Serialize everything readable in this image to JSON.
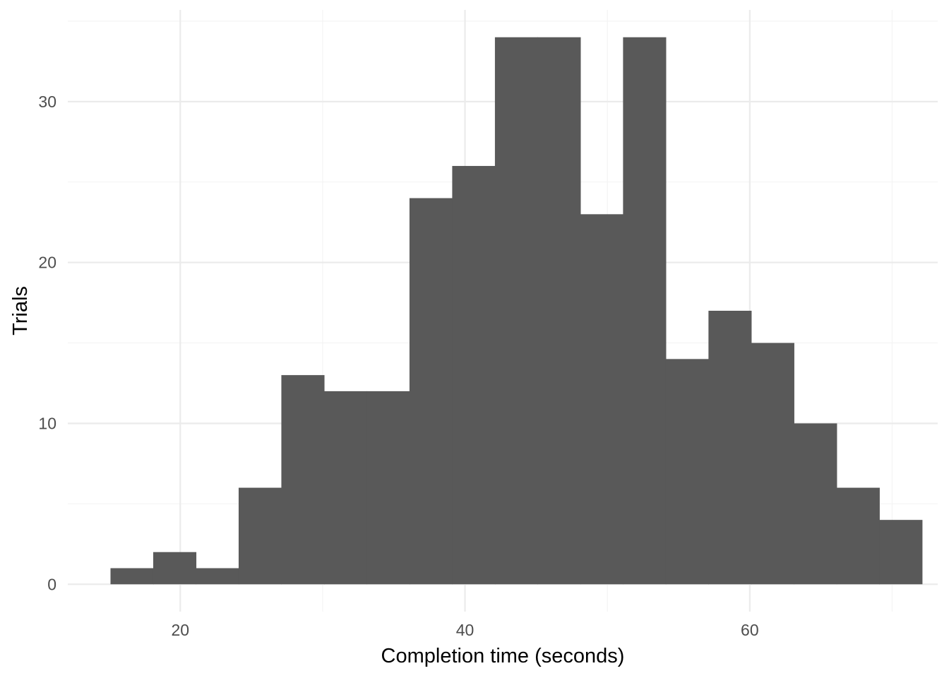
{
  "chart_data": {
    "type": "bar",
    "title": "",
    "xlabel": "Completion time (seconds)",
    "ylabel": "Trials",
    "xlim": [
      12.1,
      73.2
    ],
    "ylim": [
      -1.7,
      35.7
    ],
    "x_major_ticks": [
      20,
      40,
      60
    ],
    "x_minor_ticks": [
      30,
      50,
      70
    ],
    "y_major_ticks": [
      0,
      10,
      20,
      30
    ],
    "y_minor_ticks": [
      5,
      15,
      25,
      35
    ],
    "x_tick_labels": [
      "20",
      "40",
      "60"
    ],
    "y_tick_labels": [
      "0",
      "10",
      "20",
      "30"
    ],
    "grid": true,
    "legend": "none",
    "bar_color": "#595959",
    "bins": [
      {
        "x0": 15.1,
        "x1": 18.1,
        "count": 1
      },
      {
        "x0": 18.1,
        "x1": 21.1,
        "count": 2
      },
      {
        "x0": 21.1,
        "x1": 24.1,
        "count": 1
      },
      {
        "x0": 24.1,
        "x1": 27.1,
        "count": 6
      },
      {
        "x0": 27.1,
        "x1": 30.1,
        "count": 13
      },
      {
        "x0": 30.1,
        "x1": 33.1,
        "count": 12
      },
      {
        "x0": 33.1,
        "x1": 36.1,
        "count": 12
      },
      {
        "x0": 36.1,
        "x1": 39.1,
        "count": 24
      },
      {
        "x0": 39.1,
        "x1": 42.1,
        "count": 26
      },
      {
        "x0": 42.1,
        "x1": 45.1,
        "count": 34
      },
      {
        "x0": 45.1,
        "x1": 48.1,
        "count": 34
      },
      {
        "x0": 48.1,
        "x1": 51.1,
        "count": 23
      },
      {
        "x0": 51.1,
        "x1": 54.1,
        "count": 34
      },
      {
        "x0": 54.1,
        "x1": 57.1,
        "count": 14
      },
      {
        "x0": 57.1,
        "x1": 60.1,
        "count": 17
      },
      {
        "x0": 60.1,
        "x1": 63.1,
        "count": 15
      },
      {
        "x0": 63.1,
        "x1": 66.1,
        "count": 10
      },
      {
        "x0": 66.1,
        "x1": 69.1,
        "count": 6
      },
      {
        "x0": 69.1,
        "x1": 72.1,
        "count": 4
      }
    ]
  }
}
